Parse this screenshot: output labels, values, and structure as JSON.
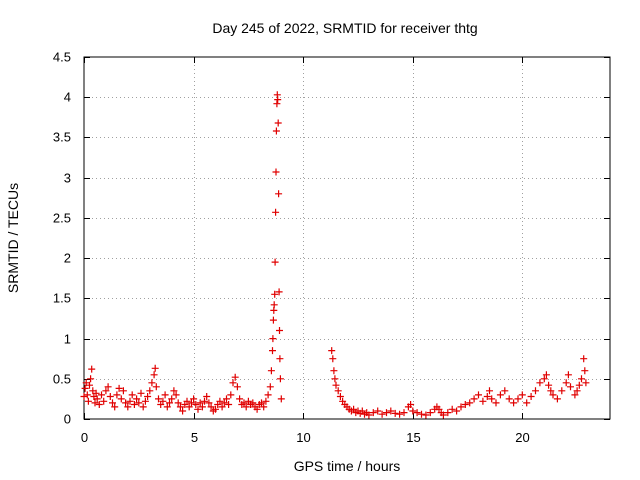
{
  "chart_data": {
    "type": "scatter",
    "title": "Day 245 of 2022, SRMTID for receiver thtg",
    "xlabel": "GPS time / hours",
    "ylabel": "SRMTID / TECUs",
    "xlim": [
      0,
      24
    ],
    "ylim": [
      0,
      4.5
    ],
    "x_ticks": [
      0,
      5,
      10,
      15,
      20
    ],
    "x_tick_labels": [
      "0",
      "5",
      "10",
      "15",
      "20"
    ],
    "y_ticks": [
      0,
      0.5,
      1,
      1.5,
      2,
      2.5,
      3,
      3.5,
      4,
      4.5
    ],
    "y_tick_labels": [
      "0",
      "0.5",
      "1",
      "1.5",
      "2",
      "2.5",
      "3",
      "3.5",
      "4",
      "4.5"
    ],
    "grid": true,
    "marker": "+",
    "color": "#e00000",
    "series": [
      {
        "name": "SRMTID",
        "points": [
          [
            0.0,
            0.28
          ],
          [
            0.05,
            0.38
          ],
          [
            0.1,
            0.45
          ],
          [
            0.15,
            0.3
          ],
          [
            0.2,
            0.22
          ],
          [
            0.25,
            0.42
          ],
          [
            0.3,
            0.5
          ],
          [
            0.35,
            0.62
          ],
          [
            0.4,
            0.35
          ],
          [
            0.45,
            0.28
          ],
          [
            0.5,
            0.2
          ],
          [
            0.55,
            0.32
          ],
          [
            0.6,
            0.25
          ],
          [
            0.7,
            0.18
          ],
          [
            0.8,
            0.3
          ],
          [
            0.9,
            0.22
          ],
          [
            1.0,
            0.35
          ],
          [
            1.1,
            0.4
          ],
          [
            1.2,
            0.28
          ],
          [
            1.3,
            0.2
          ],
          [
            1.4,
            0.15
          ],
          [
            1.5,
            0.3
          ],
          [
            1.6,
            0.38
          ],
          [
            1.7,
            0.25
          ],
          [
            1.8,
            0.35
          ],
          [
            1.9,
            0.2
          ],
          [
            2.0,
            0.15
          ],
          [
            2.1,
            0.22
          ],
          [
            2.2,
            0.3
          ],
          [
            2.3,
            0.18
          ],
          [
            2.4,
            0.25
          ],
          [
            2.5,
            0.2
          ],
          [
            2.6,
            0.32
          ],
          [
            2.7,
            0.15
          ],
          [
            2.8,
            0.22
          ],
          [
            2.9,
            0.28
          ],
          [
            3.0,
            0.35
          ],
          [
            3.1,
            0.45
          ],
          [
            3.2,
            0.55
          ],
          [
            3.25,
            0.63
          ],
          [
            3.3,
            0.4
          ],
          [
            3.4,
            0.25
          ],
          [
            3.5,
            0.18
          ],
          [
            3.6,
            0.22
          ],
          [
            3.7,
            0.3
          ],
          [
            3.8,
            0.15
          ],
          [
            3.9,
            0.2
          ],
          [
            4.0,
            0.25
          ],
          [
            4.1,
            0.35
          ],
          [
            4.2,
            0.3
          ],
          [
            4.3,
            0.2
          ],
          [
            4.4,
            0.15
          ],
          [
            4.5,
            0.1
          ],
          [
            4.6,
            0.18
          ],
          [
            4.7,
            0.22
          ],
          [
            4.8,
            0.15
          ],
          [
            4.9,
            0.2
          ],
          [
            5.0,
            0.25
          ],
          [
            5.1,
            0.18
          ],
          [
            5.2,
            0.12
          ],
          [
            5.3,
            0.2
          ],
          [
            5.4,
            0.15
          ],
          [
            5.5,
            0.22
          ],
          [
            5.6,
            0.28
          ],
          [
            5.7,
            0.2
          ],
          [
            5.8,
            0.15
          ],
          [
            5.9,
            0.1
          ],
          [
            6.0,
            0.12
          ],
          [
            6.1,
            0.18
          ],
          [
            6.2,
            0.22
          ],
          [
            6.3,
            0.15
          ],
          [
            6.4,
            0.2
          ],
          [
            6.5,
            0.25
          ],
          [
            6.6,
            0.18
          ],
          [
            6.7,
            0.3
          ],
          [
            6.8,
            0.45
          ],
          [
            6.9,
            0.52
          ],
          [
            7.0,
            0.4
          ],
          [
            7.1,
            0.25
          ],
          [
            7.2,
            0.18
          ],
          [
            7.3,
            0.2
          ],
          [
            7.4,
            0.15
          ],
          [
            7.5,
            0.22
          ],
          [
            7.6,
            0.18
          ],
          [
            7.7,
            0.2
          ],
          [
            7.8,
            0.15
          ],
          [
            7.9,
            0.12
          ],
          [
            8.0,
            0.18
          ],
          [
            8.1,
            0.2
          ],
          [
            8.2,
            0.15
          ],
          [
            8.3,
            0.22
          ],
          [
            8.4,
            0.3
          ],
          [
            8.5,
            0.4
          ],
          [
            8.55,
            0.6
          ],
          [
            8.6,
            0.85
          ],
          [
            8.62,
            1.0
          ],
          [
            8.64,
            1.23
          ],
          [
            8.66,
            1.35
          ],
          [
            8.68,
            1.42
          ],
          [
            8.7,
            1.55
          ],
          [
            8.72,
            1.95
          ],
          [
            8.74,
            2.57
          ],
          [
            8.76,
            3.07
          ],
          [
            8.78,
            3.58
          ],
          [
            8.8,
            3.92
          ],
          [
            8.82,
            4.03
          ],
          [
            8.84,
            3.97
          ],
          [
            8.86,
            3.68
          ],
          [
            8.88,
            2.8
          ],
          [
            8.9,
            1.58
          ],
          [
            8.92,
            1.1
          ],
          [
            8.94,
            0.75
          ],
          [
            8.96,
            0.5
          ],
          [
            9.0,
            0.25
          ],
          [
            11.3,
            0.85
          ],
          [
            11.35,
            0.75
          ],
          [
            11.4,
            0.6
          ],
          [
            11.45,
            0.5
          ],
          [
            11.5,
            0.42
          ],
          [
            11.6,
            0.35
          ],
          [
            11.7,
            0.28
          ],
          [
            11.8,
            0.22
          ],
          [
            11.9,
            0.18
          ],
          [
            12.0,
            0.15
          ],
          [
            12.1,
            0.12
          ],
          [
            12.2,
            0.1
          ],
          [
            12.3,
            0.12
          ],
          [
            12.4,
            0.08
          ],
          [
            12.5,
            0.1
          ],
          [
            12.6,
            0.07
          ],
          [
            12.7,
            0.1
          ],
          [
            12.8,
            0.06
          ],
          [
            12.9,
            0.08
          ],
          [
            13.0,
            0.05
          ],
          [
            13.2,
            0.08
          ],
          [
            13.4,
            0.1
          ],
          [
            13.6,
            0.06
          ],
          [
            13.8,
            0.08
          ],
          [
            14.0,
            0.1
          ],
          [
            14.2,
            0.07
          ],
          [
            14.4,
            0.06
          ],
          [
            14.6,
            0.08
          ],
          [
            14.8,
            0.15
          ],
          [
            14.9,
            0.18
          ],
          [
            15.0,
            0.1
          ],
          [
            15.2,
            0.08
          ],
          [
            15.4,
            0.06
          ],
          [
            15.6,
            0.05
          ],
          [
            15.8,
            0.08
          ],
          [
            16.0,
            0.12
          ],
          [
            16.1,
            0.15
          ],
          [
            16.2,
            0.12
          ],
          [
            16.3,
            0.08
          ],
          [
            16.4,
            0.05
          ],
          [
            16.6,
            0.08
          ],
          [
            16.8,
            0.12
          ],
          [
            17.0,
            0.1
          ],
          [
            17.2,
            0.15
          ],
          [
            17.4,
            0.18
          ],
          [
            17.6,
            0.2
          ],
          [
            17.8,
            0.25
          ],
          [
            18.0,
            0.3
          ],
          [
            18.2,
            0.22
          ],
          [
            18.4,
            0.28
          ],
          [
            18.5,
            0.35
          ],
          [
            18.6,
            0.25
          ],
          [
            18.8,
            0.2
          ],
          [
            19.0,
            0.3
          ],
          [
            19.2,
            0.35
          ],
          [
            19.4,
            0.25
          ],
          [
            19.6,
            0.2
          ],
          [
            19.8,
            0.25
          ],
          [
            20.0,
            0.3
          ],
          [
            20.2,
            0.2
          ],
          [
            20.4,
            0.28
          ],
          [
            20.6,
            0.35
          ],
          [
            20.8,
            0.45
          ],
          [
            21.0,
            0.5
          ],
          [
            21.1,
            0.55
          ],
          [
            21.2,
            0.42
          ],
          [
            21.3,
            0.35
          ],
          [
            21.4,
            0.3
          ],
          [
            21.6,
            0.25
          ],
          [
            21.8,
            0.35
          ],
          [
            22.0,
            0.45
          ],
          [
            22.1,
            0.55
          ],
          [
            22.2,
            0.4
          ],
          [
            22.4,
            0.3
          ],
          [
            22.5,
            0.35
          ],
          [
            22.6,
            0.42
          ],
          [
            22.7,
            0.5
          ],
          [
            22.8,
            0.75
          ],
          [
            22.85,
            0.6
          ],
          [
            22.9,
            0.45
          ]
        ]
      }
    ]
  }
}
